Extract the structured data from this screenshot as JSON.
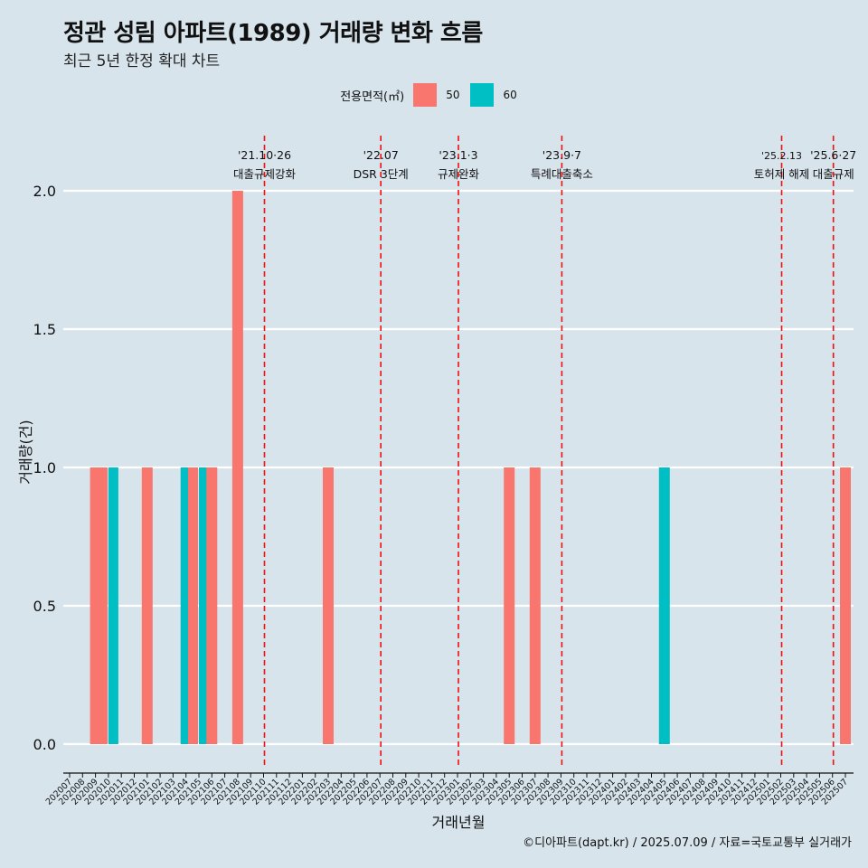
{
  "title": "정관 성림 아파트(1989) 거래량 변화 흐름",
  "subtitle": "최근 5년 한정 확대 차트",
  "caption": "©디아파트(dapt.kr) / 2025.07.09 / 자료=국토교통부 실거래가",
  "legend": {
    "title": "전용면적(㎡)",
    "items": [
      {
        "label": "50",
        "color": "#f8766d"
      },
      {
        "label": "60",
        "color": "#00bfc4"
      }
    ]
  },
  "chart_data": {
    "type": "bar",
    "xlabel": "거래년월",
    "ylabel": "거래량(건)",
    "ylim": [
      0,
      2
    ],
    "yticks": [
      "0.0",
      "0.5",
      "1.0",
      "1.5",
      "2.0"
    ],
    "grid": true,
    "legend_position": "top",
    "categories": [
      "202007",
      "202008",
      "202009",
      "202010",
      "202011",
      "202012",
      "202101",
      "202102",
      "202103",
      "202104",
      "202105",
      "202106",
      "202107",
      "202108",
      "202109",
      "202110",
      "202111",
      "202112",
      "202201",
      "202202",
      "202203",
      "202204",
      "202205",
      "202206",
      "202207",
      "202208",
      "202209",
      "202210",
      "202211",
      "202212",
      "202301",
      "202302",
      "202303",
      "202304",
      "202305",
      "202306",
      "202307",
      "202308",
      "202309",
      "202310",
      "202311",
      "202312",
      "202401",
      "202402",
      "202403",
      "202404",
      "202405",
      "202406",
      "202407",
      "202408",
      "202409",
      "202410",
      "202411",
      "202412",
      "202501",
      "202502",
      "202503",
      "202504",
      "202505",
      "202506",
      "202507"
    ],
    "series": [
      {
        "name": "50",
        "color": "#f8766d",
        "values": [
          0,
          0,
          1,
          1,
          0,
          0,
          1,
          0,
          0,
          0,
          1,
          1,
          0,
          2,
          0,
          0,
          0,
          0,
          0,
          0,
          1,
          0,
          0,
          0,
          0,
          0,
          0,
          0,
          0,
          0,
          0,
          0,
          0,
          0,
          1,
          0,
          1,
          0,
          0,
          0,
          0,
          0,
          0,
          0,
          0,
          0,
          0,
          0,
          0,
          0,
          0,
          0,
          0,
          0,
          0,
          0,
          0,
          0,
          0,
          0,
          1
        ]
      },
      {
        "name": "60",
        "color": "#00bfc4",
        "values": [
          0,
          0,
          0,
          1,
          0,
          0,
          0,
          0,
          0,
          1,
          1,
          0,
          0,
          0,
          0,
          0,
          0,
          0,
          0,
          0,
          0,
          0,
          0,
          0,
          0,
          0,
          0,
          0,
          0,
          0,
          0,
          0,
          0,
          0,
          0,
          0,
          0,
          0,
          0,
          0,
          0,
          0,
          0,
          0,
          0,
          0,
          1,
          0,
          0,
          0,
          0,
          0,
          0,
          0,
          0,
          0,
          0,
          0,
          0,
          0,
          0
        ]
      }
    ],
    "annotations": [
      {
        "date": "'21.10·26",
        "label": "대출규제강화",
        "at": "202110"
      },
      {
        "date": "'22.07",
        "label": "DSR 3단계",
        "at": "202207"
      },
      {
        "date": "'23.1·3",
        "label": "규제완화",
        "at": "202301"
      },
      {
        "date": "'23.9·7",
        "label": "특례대출축소",
        "at": "202309"
      },
      {
        "date": "'25.2.13",
        "label": "토허제 해제",
        "at": "202502"
      },
      {
        "date": "'25.6·27",
        "label": "대출규제",
        "at": "202506"
      }
    ]
  }
}
